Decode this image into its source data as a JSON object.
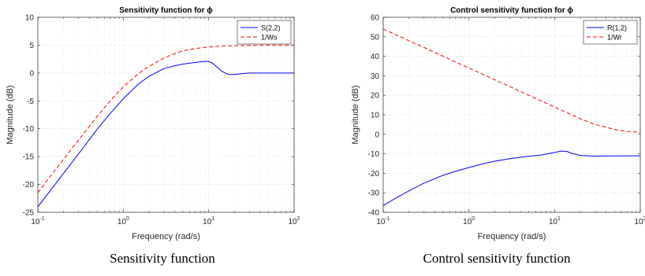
{
  "chart_data": [
    {
      "type": "line",
      "title": "Sensitivity function for  ϕ",
      "xlabel": "Frequency  (rad/s)",
      "ylabel": "Magnitude (dB)",
      "xscale": "log",
      "xlim": [
        0.1,
        100
      ],
      "ylim": [
        -25,
        10
      ],
      "yticks": [
        10,
        5,
        0,
        -5,
        -10,
        -15,
        -20,
        -25
      ],
      "xtick_labels": [
        {
          "base": "10",
          "exp": "-1"
        },
        {
          "base": "10",
          "exp": "0"
        },
        {
          "base": "10",
          "exp": "1"
        },
        {
          "base": "10",
          "exp": "2"
        }
      ],
      "grid": true,
      "legend_position": "top-right",
      "series": [
        {
          "name": "S(2,2)",
          "color": "#0000ff",
          "dash": "solid",
          "x": [
            0.1,
            0.15,
            0.2,
            0.3,
            0.5,
            0.7,
            1,
            1.5,
            2,
            3,
            4,
            5,
            7,
            9,
            10,
            11,
            12,
            14,
            16,
            18,
            20,
            25,
            30,
            50,
            100
          ],
          "y": [
            -24,
            -20.5,
            -18,
            -14.5,
            -10,
            -7.3,
            -4.6,
            -2,
            -0.6,
            0.8,
            1.3,
            1.6,
            1.9,
            2.1,
            2.05,
            1.8,
            1.3,
            0.4,
            -0.1,
            -0.3,
            -0.25,
            -0.1,
            0,
            0,
            0
          ]
        },
        {
          "name": "1/Ws",
          "color": "#ff0000",
          "dash": "dashed",
          "x": [
            0.1,
            0.15,
            0.2,
            0.3,
            0.5,
            0.7,
            1,
            1.5,
            2,
            3,
            4,
            5,
            7,
            10,
            15,
            20,
            30,
            50,
            100
          ],
          "y": [
            -21.5,
            -17.9,
            -15.5,
            -12,
            -7.7,
            -5,
            -2.5,
            -0.1,
            1.2,
            2.7,
            3.5,
            4,
            4.4,
            4.7,
            4.85,
            4.9,
            4.95,
            5,
            5
          ]
        }
      ]
    },
    {
      "type": "line",
      "title": "Control sensitivity function for  ϕ",
      "xlabel": "Frequency  (rad/s)",
      "ylabel": "Magnitude (dB)",
      "xscale": "log",
      "xlim": [
        0.1,
        100
      ],
      "ylim": [
        -40,
        60
      ],
      "yticks": [
        60,
        50,
        40,
        30,
        20,
        10,
        0,
        -10,
        -20,
        -30,
        -40
      ],
      "xtick_labels": [
        {
          "base": "10",
          "exp": "-1"
        },
        {
          "base": "10",
          "exp": "0"
        },
        {
          "base": "10",
          "exp": "1"
        },
        {
          "base": "10",
          "exp": "2"
        }
      ],
      "grid": true,
      "legend_position": "top-right",
      "series": [
        {
          "name": "R(1,2)",
          "color": "#0000ff",
          "dash": "solid",
          "x": [
            0.1,
            0.15,
            0.2,
            0.3,
            0.5,
            0.7,
            1,
            1.5,
            2,
            3,
            5,
            7,
            10,
            12,
            14,
            16,
            20,
            30,
            50,
            100
          ],
          "y": [
            -36.5,
            -32,
            -29,
            -25,
            -21,
            -19,
            -17,
            -15,
            -13.8,
            -12.5,
            -11.3,
            -10.6,
            -9.3,
            -8.6,
            -8.8,
            -9.8,
            -10.8,
            -11.2,
            -11.1,
            -11
          ]
        },
        {
          "name": "1/Wr",
          "color": "#ff0000",
          "dash": "dashed",
          "x": [
            0.1,
            0.2,
            0.3,
            0.5,
            1,
            2,
            3,
            5,
            10,
            15,
            20,
            30,
            50,
            70,
            100
          ],
          "y": [
            54,
            48,
            44.5,
            40,
            34,
            28,
            24.5,
            20,
            14,
            10.5,
            8,
            5,
            2.5,
            1.5,
            1
          ]
        }
      ]
    }
  ],
  "captions": {
    "left": "Sensitivity function",
    "right": "Control sensitivity function"
  }
}
